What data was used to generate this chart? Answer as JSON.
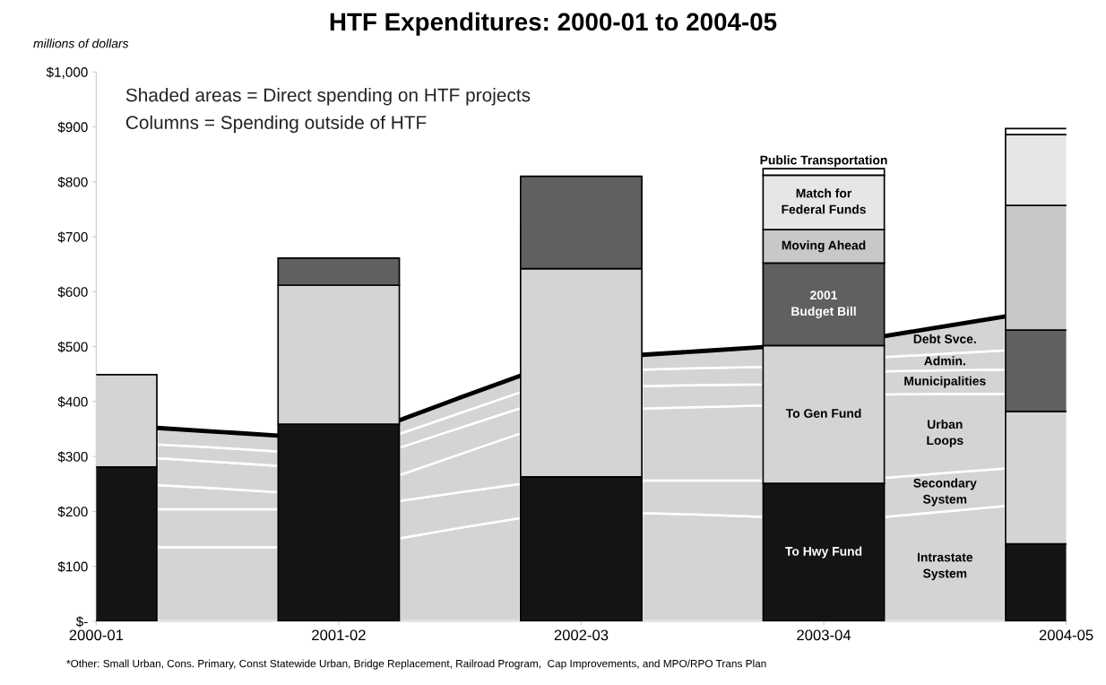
{
  "chart_data": {
    "type": "bar",
    "stacked": true,
    "title": "HTF Expenditures: 2000-01 to 2004-05",
    "ylabel": "millions of dollars",
    "categories": [
      "2000-01",
      null,
      null,
      null,
      "2001-02",
      null,
      null,
      null,
      "2002-03",
      null,
      null,
      null,
      "2003-04",
      null,
      null,
      null,
      "2004-05"
    ],
    "ylim": [
      0,
      1000
    ],
    "yticks": [
      {
        "value": 0,
        "label": "$-"
      },
      {
        "value": 100,
        "label": "$100"
      },
      {
        "value": 200,
        "label": "$200"
      },
      {
        "value": 300,
        "label": "$300"
      },
      {
        "value": 400,
        "label": "$400"
      },
      {
        "value": 500,
        "label": "$500"
      },
      {
        "value": 600,
        "label": "$600"
      },
      {
        "value": 700,
        "label": "$700"
      },
      {
        "value": 800,
        "label": "$800"
      },
      {
        "value": 900,
        "label": "$900"
      },
      {
        "value": 1000,
        "label": "$1,000"
      }
    ],
    "grid": false,
    "series": [
      {
        "type": "area",
        "name": "Intrastate\nSystem",
        "color": "#d4d4d4",
        "values": [
          null,
          135,
          135,
          135,
          null,
          151,
          170,
          188,
          null,
          197,
          194,
          190,
          null,
          190,
          200,
          210,
          null
        ]
      },
      {
        "type": "area",
        "name": "Secondary\nSystem",
        "color": "#d4d4d4",
        "values": [
          null,
          69,
          69,
          69,
          null,
          68,
          65,
          62,
          null,
          59,
          62,
          66,
          null,
          71,
          70,
          68,
          null
        ]
      },
      {
        "type": "area",
        "name": "Urban\nLoops",
        "color": "#d4d4d4",
        "values": [
          null,
          44,
          38,
          31,
          null,
          47,
          69,
          92,
          null,
          131,
          134,
          137,
          null,
          152,
          144,
          136,
          null
        ]
      },
      {
        "type": "area",
        "name": "Municipalities",
        "color": "#d4d4d4",
        "values": [
          null,
          49,
          48,
          48,
          null,
          50,
          48,
          46,
          null,
          41,
          40,
          38,
          null,
          42,
          43,
          44,
          null
        ]
      },
      {
        "type": "area",
        "name": "Admin.",
        "color": "#d4d4d4",
        "values": [
          null,
          25,
          26,
          26,
          null,
          25,
          27,
          29,
          null,
          30,
          31,
          32,
          null,
          26,
          30,
          35,
          null
        ]
      },
      {
        "type": "area",
        "name": "Debt Svce.",
        "color": "#d4d4d4",
        "values": [
          null,
          30,
          29,
          29,
          null,
          25,
          28,
          30,
          null,
          27,
          31,
          36,
          null,
          38,
          50,
          62,
          null
        ]
      },
      {
        "name": "To Hwy Fund",
        "color": "#141414",
        "values": [
          281,
          null,
          null,
          null,
          359,
          null,
          null,
          null,
          263,
          null,
          null,
          null,
          251,
          null,
          null,
          null,
          141
        ]
      },
      {
        "name": "To Gen Fund",
        "color": "#d4d4d4",
        "values": [
          168,
          null,
          null,
          null,
          253,
          null,
          null,
          null,
          379,
          null,
          null,
          null,
          251,
          null,
          null,
          null,
          241
        ]
      },
      {
        "name": "2001\nBudget Bill",
        "color": "#606060",
        "values": [
          null,
          null,
          null,
          null,
          49,
          null,
          null,
          null,
          168,
          null,
          null,
          null,
          150,
          null,
          null,
          null,
          148
        ]
      },
      {
        "name": "Moving Ahead",
        "color": "#c8c8c8",
        "values": [
          null,
          null,
          null,
          null,
          null,
          null,
          null,
          null,
          null,
          null,
          null,
          null,
          61,
          null,
          null,
          null,
          227
        ]
      },
      {
        "name": "Match for\nFederal Funds",
        "color": "#e6e6e6",
        "values": [
          null,
          null,
          null,
          null,
          null,
          null,
          null,
          null,
          null,
          null,
          null,
          null,
          99,
          null,
          null,
          null,
          129
        ]
      },
      {
        "name": "Public Transportation",
        "color": "#ffffff",
        "values": [
          null,
          null,
          null,
          null,
          null,
          null,
          null,
          null,
          null,
          null,
          null,
          null,
          12,
          null,
          null,
          null,
          11
        ]
      }
    ],
    "annotations": [
      "Shaded areas = Direct spending on HTF projects",
      "Columns = Spending outside of HTF",
      "*Other: Small Urban, Cons. Primary, Const Statewide Urban, Bridge Replacement, Railroad Program,  Cap Improvements, and MPO/RPO Trans Plan"
    ]
  }
}
